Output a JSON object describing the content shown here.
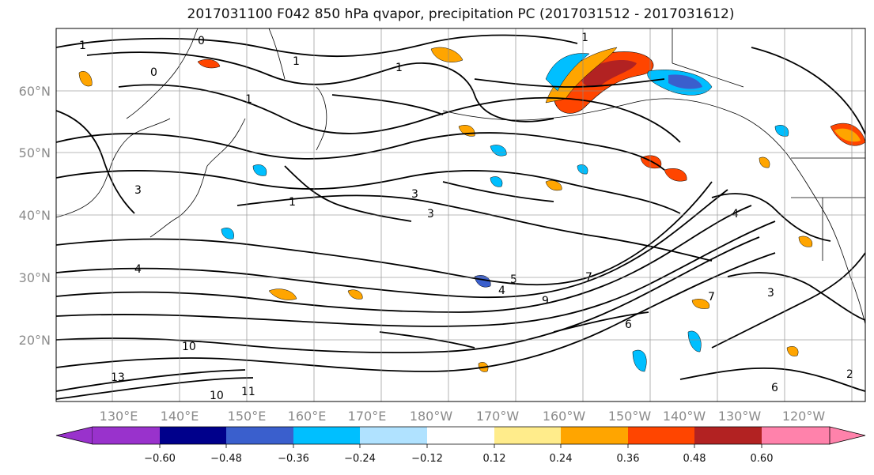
{
  "title": "2017031100 F042 850 hPa qvapor, precipitation PC (2017031512 - 2017031612)",
  "latitudes": [
    "60°N",
    "50°N",
    "40°N",
    "30°N",
    "20°N"
  ],
  "longitudes": [
    "130°E",
    "140°E",
    "150°E",
    "160°E",
    "170°E",
    "180°W",
    "170°W",
    "160°W",
    "150°W",
    "140°W",
    "130°W",
    "120°W"
  ],
  "colorbar": {
    "ticks": [
      "−0.60",
      "−0.48",
      "−0.36",
      "−0.24",
      "−0.12",
      "0.12",
      "0.24",
      "0.36",
      "0.48",
      "0.60"
    ],
    "colors": [
      "#9932cc",
      "#00008b",
      "#3a5fcd",
      "#00bfff",
      "#b0e2ff",
      "#ffffff",
      "#ffec8b",
      "#ffa500",
      "#ff4500",
      "#b22222",
      "#ff82ab"
    ]
  },
  "contour_labels": [
    "1",
    "1",
    "1",
    "0",
    "1",
    "1",
    "0",
    "1",
    "3",
    "3",
    "3",
    "4",
    "5",
    "4",
    "6",
    "7",
    "9",
    "10",
    "10",
    "11",
    "13",
    "4",
    "7",
    "3",
    "6",
    "2"
  ]
}
